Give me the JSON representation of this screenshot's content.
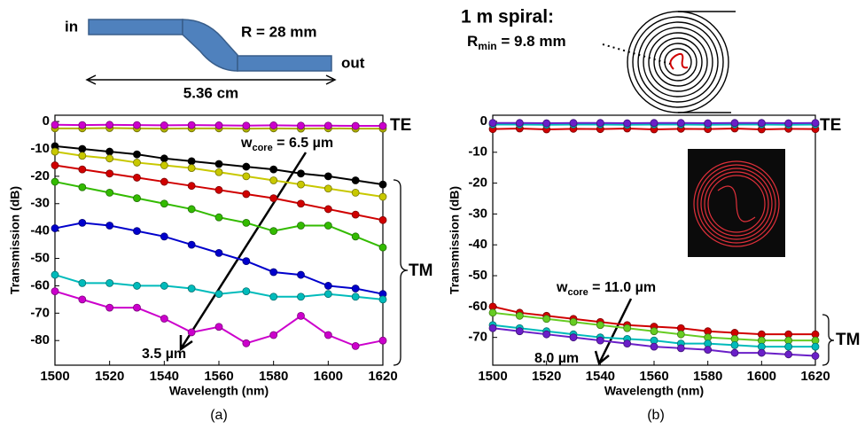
{
  "chart_data": [
    {
      "type": "line",
      "xlabel": "Wavelength (nm)",
      "ylabel": "Transmission (dB)",
      "x": [
        1500,
        1510,
        1520,
        1530,
        1540,
        1550,
        1560,
        1570,
        1580,
        1590,
        1600,
        1610,
        1620
      ],
      "xlim": [
        1500,
        1620
      ],
      "ylim": [
        -89,
        2.3
      ],
      "xticks": [
        1500,
        1520,
        1540,
        1560,
        1580,
        1600,
        1620
      ],
      "yticks": [
        0,
        -10,
        -20,
        -30,
        -40,
        -50,
        -60,
        -70,
        -80
      ],
      "series": [
        {
          "color": "#b0b000",
          "values": [
            -2.5,
            -2.5,
            -2.4,
            -2.5,
            -2.6,
            -2.5,
            -2.5,
            -2.6,
            -2.5,
            -2.6,
            -2.5,
            -2.6,
            -2.6
          ]
        },
        {
          "color": "#cc00cc",
          "values": [
            -1.2,
            -1.3,
            -1.2,
            -1.3,
            -1.4,
            -1.3,
            -1.4,
            -1.5,
            -1.4,
            -1.5,
            -1.5,
            -1.6,
            -1.6
          ]
        },
        {
          "color": "#000000",
          "values": [
            -9,
            -10,
            -11,
            -12,
            -13.5,
            -14.5,
            -15.5,
            -16.5,
            -17.5,
            -19,
            -20,
            -21.5,
            -23
          ]
        },
        {
          "color": "#c8c800",
          "values": [
            -11,
            -12.5,
            -13.5,
            -15,
            -16,
            -17,
            -18.5,
            -20,
            -21.5,
            -23,
            -24.5,
            -26,
            -27.5
          ]
        },
        {
          "color": "#d00000",
          "values": [
            -16,
            -17.5,
            -19,
            -20.5,
            -22,
            -23.5,
            -25,
            -26.5,
            -28,
            -30,
            -32,
            -34,
            -36
          ]
        },
        {
          "color": "#33bb00",
          "values": [
            -22,
            -24,
            -26,
            -28,
            -30,
            -32,
            -35,
            -37,
            -40,
            -38,
            -38,
            -42,
            -46
          ]
        },
        {
          "color": "#0000cc",
          "values": [
            -39,
            -37,
            -38,
            -40,
            -42,
            -45,
            -48,
            -51,
            -55,
            -56,
            -60,
            -61,
            -63
          ]
        },
        {
          "color": "#00bbbb",
          "values": [
            -56,
            -59,
            -59,
            -60,
            -60,
            -61,
            -63,
            -62,
            -64,
            -64,
            -63,
            -64,
            -65
          ]
        },
        {
          "color": "#cc00cc",
          "values": [
            -62,
            -65,
            -68,
            -68,
            -72,
            -77,
            -75,
            -81,
            -78,
            -71,
            -78,
            -82,
            -80
          ]
        }
      ],
      "te_label": "TE",
      "tm_label": "TM",
      "wcore": {
        "base": "w",
        "sub": "core",
        "text": " = 6.5 µm"
      },
      "end_label": "3.5 µm",
      "panel_label": "(a)",
      "schematic": {
        "in": "in",
        "out": "out",
        "radius": "R = 28 mm",
        "length": "5.36 cm"
      }
    },
    {
      "type": "line",
      "xlabel": "Wavelength (nm)",
      "ylabel": "Transmission (dB)",
      "x": [
        1500,
        1510,
        1520,
        1530,
        1540,
        1550,
        1560,
        1570,
        1580,
        1590,
        1600,
        1610,
        1620
      ],
      "xlim": [
        1500,
        1620
      ],
      "ylim": [
        -79,
        2
      ],
      "xticks": [
        1500,
        1520,
        1540,
        1560,
        1580,
        1600,
        1620
      ],
      "yticks": [
        0,
        -10,
        -20,
        -30,
        -40,
        -50,
        -60,
        -70
      ],
      "series": [
        {
          "color": "#d00000",
          "values": [
            -2.5,
            -2.3,
            -2.6,
            -2.4,
            -2.5,
            -2.3,
            -2.6,
            -2.4,
            -2.5,
            -2.3,
            -2.6,
            -2.4,
            -2.5
          ]
        },
        {
          "color": "#00bbbb",
          "values": [
            -1,
            -1,
            -1.1,
            -1,
            -1,
            -1.1,
            -1,
            -1,
            -1.1,
            -1,
            -1,
            -1.1,
            -1
          ]
        },
        {
          "color": "#6a1fc8",
          "values": [
            -0.5,
            -0.5,
            -0.6,
            -0.5,
            -0.5,
            -0.6,
            -0.5,
            -0.5,
            -0.6,
            -0.5,
            -0.5,
            -0.6,
            -0.5
          ]
        },
        {
          "color": "#d00000",
          "values": [
            -60,
            -62,
            -63,
            -64,
            -65,
            -66,
            -66.5,
            -67,
            -68,
            -68.5,
            -69,
            -69,
            -69
          ]
        },
        {
          "color": "#66cc22",
          "values": [
            -62,
            -63,
            -64,
            -65,
            -66,
            -67,
            -68,
            -69,
            -70,
            -70.5,
            -71,
            -71,
            -71
          ]
        },
        {
          "color": "#00bbbb",
          "values": [
            -66,
            -67,
            -68,
            -69,
            -70,
            -70.5,
            -71,
            -72,
            -72,
            -72.5,
            -73,
            -73,
            -73
          ]
        },
        {
          "color": "#6a1fc8",
          "values": [
            -67,
            -68,
            -69,
            -70,
            -71,
            -72,
            -73,
            -73.5,
            -74,
            -75,
            -75,
            -75.5,
            -76
          ]
        }
      ],
      "te_label": "TE",
      "tm_label": "TM",
      "wcore": {
        "base": "w",
        "sub": "core",
        "text": " = 11.0 µm"
      },
      "end_label": "8.0 µm",
      "panel_label": "(b)",
      "schematic": {
        "title": "1 m spiral:",
        "radius": {
          "base": "R",
          "sub": "min",
          "text": " = 9.8 mm"
        }
      }
    }
  ]
}
